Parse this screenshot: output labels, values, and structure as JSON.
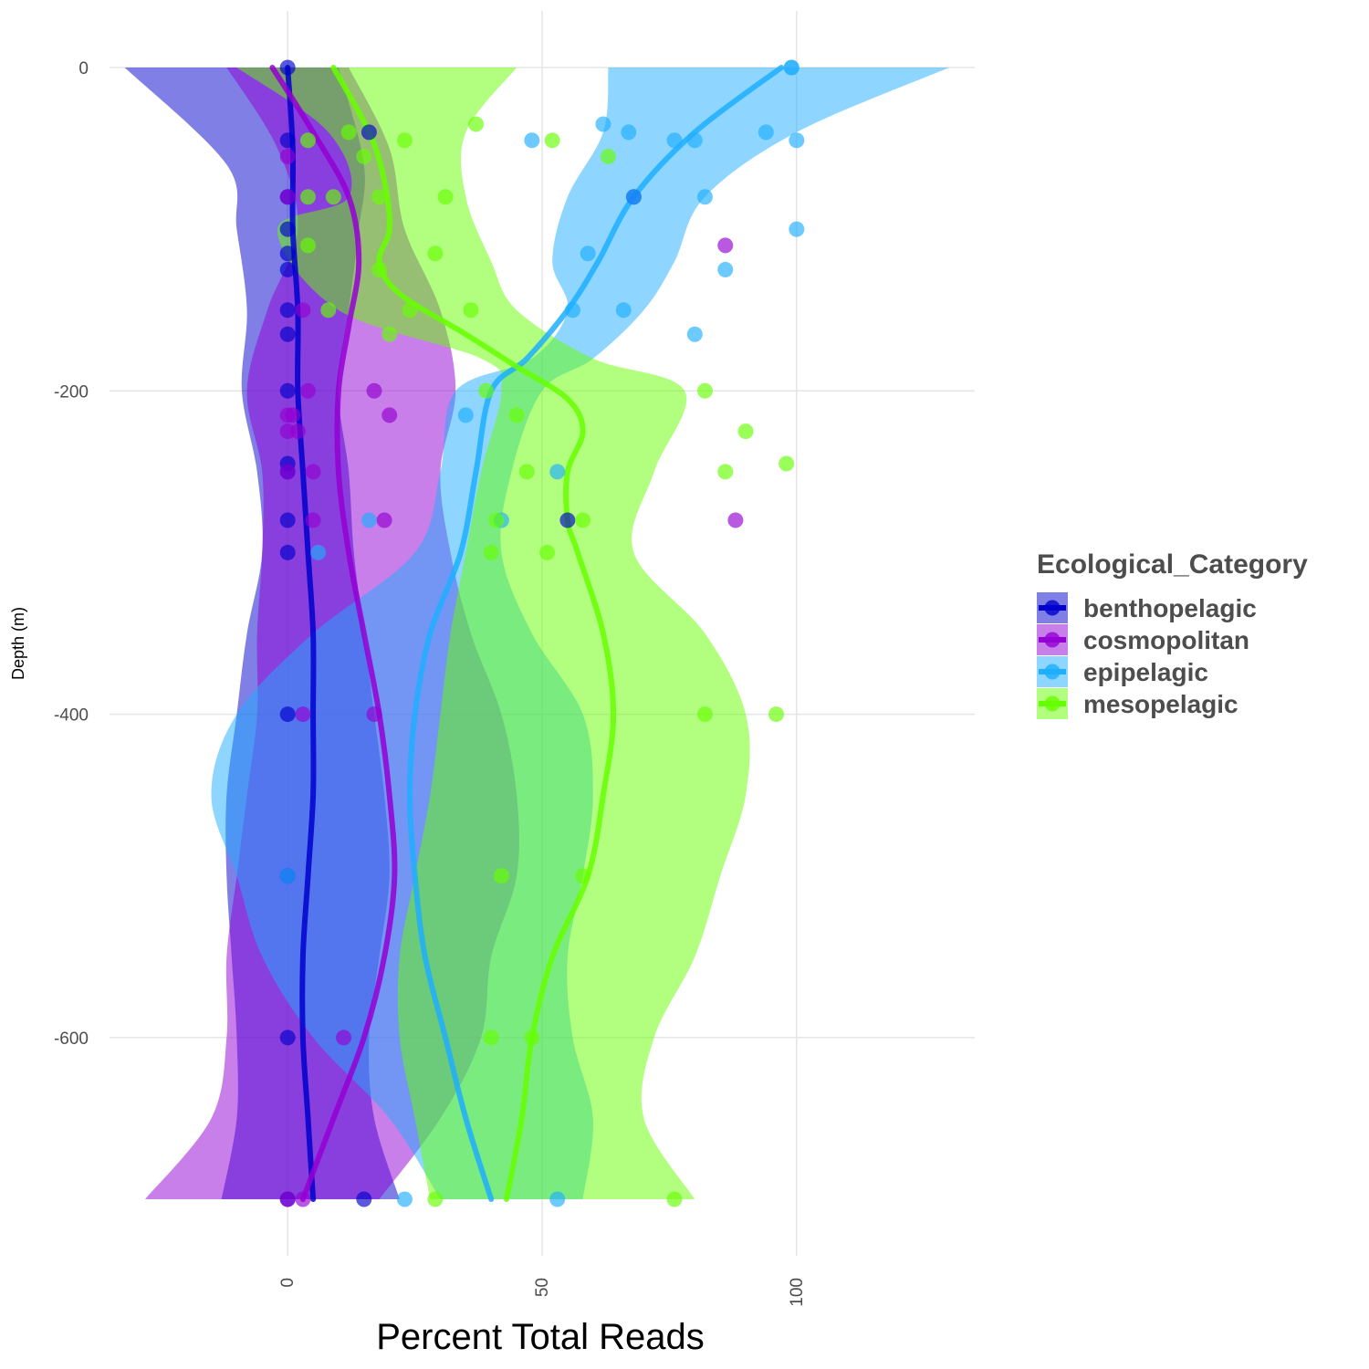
{
  "chart_data": {
    "type": "scatter",
    "title": "",
    "xlabel": "Percent Total Reads",
    "ylabel": "Depth (m)",
    "xlim": [
      -35,
      135
    ],
    "ylim": [
      -735,
      35
    ],
    "x_ticks": [
      0,
      50,
      100
    ],
    "x_tick_labels": [
      "0",
      "50",
      "100"
    ],
    "y_ticks": [
      0,
      -200,
      -400,
      -600
    ],
    "y_tick_labels": [
      "0",
      "-200",
      "-400",
      "-600"
    ],
    "grid": true,
    "legend": {
      "title": "Ecological_Category",
      "position": "right",
      "entries": [
        "benthopelagic",
        "cosmopolitan",
        "epipelagic",
        "mesopelagic"
      ]
    },
    "series": [
      {
        "name": "benthopelagic",
        "color": "#0000CD",
        "points": [
          [
            0,
            0
          ],
          [
            0,
            -45
          ],
          [
            0,
            -80
          ],
          [
            0,
            -100
          ],
          [
            0,
            -115
          ],
          [
            0,
            -125
          ],
          [
            0,
            -150
          ],
          [
            0,
            -165
          ],
          [
            0,
            -200
          ],
          [
            0,
            -245
          ],
          [
            0,
            -250
          ],
          [
            0,
            -280
          ],
          [
            0,
            -300
          ],
          [
            0,
            -400
          ],
          [
            0,
            -500
          ],
          [
            0,
            -600
          ],
          [
            0,
            -700
          ],
          [
            15,
            -700
          ],
          [
            68,
            -80
          ],
          [
            55,
            -280
          ],
          [
            16,
            -40
          ]
        ],
        "smooth": [
          [
            0,
            0
          ],
          [
            1,
            -50
          ],
          [
            1,
            -100
          ],
          [
            2,
            -150
          ],
          [
            2,
            -200
          ],
          [
            3,
            -250
          ],
          [
            4,
            -300
          ],
          [
            5,
            -350
          ],
          [
            5,
            -400
          ],
          [
            5,
            -450
          ],
          [
            4,
            -500
          ],
          [
            3,
            -550
          ],
          [
            3,
            -600
          ],
          [
            4,
            -650
          ],
          [
            5,
            -700
          ]
        ],
        "band_low": [
          [
            -32,
            0
          ],
          [
            -12,
            -60
          ],
          [
            -10,
            -100
          ],
          [
            -8,
            -150
          ],
          [
            -9,
            -200
          ],
          [
            -6,
            -250
          ],
          [
            -5,
            -300
          ],
          [
            -8,
            -350
          ],
          [
            -10,
            -400
          ],
          [
            -12,
            -450
          ],
          [
            -12,
            -500
          ],
          [
            -11,
            -550
          ],
          [
            -10,
            -600
          ],
          [
            -10,
            -650
          ],
          [
            -13,
            -700
          ]
        ],
        "band_high": [
          [
            10,
            0
          ],
          [
            15,
            -60
          ],
          [
            14,
            -100
          ],
          [
            12,
            -150
          ],
          [
            10,
            -200
          ],
          [
            12,
            -250
          ],
          [
            13,
            -300
          ],
          [
            15,
            -350
          ],
          [
            17,
            -400
          ],
          [
            19,
            -450
          ],
          [
            20,
            -500
          ],
          [
            18,
            -550
          ],
          [
            16,
            -600
          ],
          [
            17,
            -650
          ],
          [
            22,
            -700
          ]
        ]
      },
      {
        "name": "cosmopolitan",
        "color": "#9400D3",
        "points": [
          [
            0,
            -55
          ],
          [
            0,
            -80
          ],
          [
            0,
            -215
          ],
          [
            0,
            -225
          ],
          [
            0,
            -250
          ],
          [
            1,
            -215
          ],
          [
            2,
            -225
          ],
          [
            3,
            -150
          ],
          [
            4,
            -200
          ],
          [
            5,
            -250
          ],
          [
            5,
            -280
          ],
          [
            3,
            -400
          ],
          [
            3,
            -700
          ],
          [
            17,
            -200
          ],
          [
            20,
            -215
          ],
          [
            19,
            -280
          ],
          [
            17,
            -400
          ],
          [
            11,
            -600
          ],
          [
            86,
            -110
          ],
          [
            88,
            -280
          ],
          [
            0,
            -700
          ]
        ],
        "smooth": [
          [
            -3,
            0
          ],
          [
            5,
            -40
          ],
          [
            12,
            -80
          ],
          [
            14,
            -120
          ],
          [
            12,
            -160
          ],
          [
            10,
            -200
          ],
          [
            10,
            -250
          ],
          [
            12,
            -300
          ],
          [
            15,
            -350
          ],
          [
            18,
            -400
          ],
          [
            20,
            -450
          ],
          [
            21,
            -500
          ],
          [
            19,
            -550
          ],
          [
            15,
            -600
          ],
          [
            9,
            -650
          ],
          [
            3,
            -700
          ]
        ],
        "band_low": [
          [
            -12,
            0
          ],
          [
            -2,
            -50
          ],
          [
            2,
            -100
          ],
          [
            -4,
            -150
          ],
          [
            -8,
            -200
          ],
          [
            -5,
            -250
          ],
          [
            -5,
            -300
          ],
          [
            -6,
            -350
          ],
          [
            -6,
            -400
          ],
          [
            -8,
            -450
          ],
          [
            -10,
            -500
          ],
          [
            -12,
            -550
          ],
          [
            -12,
            -600
          ],
          [
            -15,
            -650
          ],
          [
            -28,
            -700
          ]
        ],
        "band_high": [
          [
            12,
            0
          ],
          [
            20,
            -50
          ],
          [
            23,
            -100
          ],
          [
            30,
            -150
          ],
          [
            33,
            -200
          ],
          [
            30,
            -250
          ],
          [
            32,
            -300
          ],
          [
            36,
            -350
          ],
          [
            42,
            -400
          ],
          [
            45,
            -450
          ],
          [
            45,
            -500
          ],
          [
            40,
            -550
          ],
          [
            38,
            -600
          ],
          [
            30,
            -650
          ],
          [
            18,
            -700
          ]
        ]
      },
      {
        "name": "epipelagic",
        "color": "#1EAEFF",
        "points": [
          [
            99,
            0
          ],
          [
            99,
            0
          ],
          [
            62,
            -35
          ],
          [
            67,
            -40
          ],
          [
            48,
            -45
          ],
          [
            76,
            -45
          ],
          [
            80,
            -45
          ],
          [
            94,
            -40
          ],
          [
            100,
            -45
          ],
          [
            68,
            -80
          ],
          [
            82,
            -80
          ],
          [
            100,
            -100
          ],
          [
            59,
            -115
          ],
          [
            86,
            -125
          ],
          [
            56,
            -150
          ],
          [
            66,
            -150
          ],
          [
            80,
            -165
          ],
          [
            35,
            -215
          ],
          [
            53,
            -250
          ],
          [
            42,
            -280
          ],
          [
            6,
            -300
          ],
          [
            0,
            -500
          ],
          [
            23,
            -700
          ],
          [
            53,
            -700
          ],
          [
            16,
            -280
          ]
        ],
        "smooth": [
          [
            97,
            0
          ],
          [
            80,
            -40
          ],
          [
            68,
            -80
          ],
          [
            61,
            -120
          ],
          [
            55,
            -150
          ],
          [
            47,
            -180
          ],
          [
            40,
            -200
          ],
          [
            37,
            -250
          ],
          [
            34,
            -300
          ],
          [
            28,
            -350
          ],
          [
            25,
            -400
          ],
          [
            24,
            -450
          ],
          [
            25,
            -500
          ],
          [
            27,
            -550
          ],
          [
            31,
            -600
          ],
          [
            35,
            -650
          ],
          [
            40,
            -700
          ]
        ],
        "band_low": [
          [
            63,
            0
          ],
          [
            62,
            -40
          ],
          [
            55,
            -80
          ],
          [
            52,
            -120
          ],
          [
            55,
            -150
          ],
          [
            48,
            -180
          ],
          [
            33,
            -200
          ],
          [
            30,
            -250
          ],
          [
            25,
            -300
          ],
          [
            5,
            -350
          ],
          [
            -10,
            -400
          ],
          [
            -15,
            -450
          ],
          [
            -10,
            -500
          ],
          [
            -5,
            -550
          ],
          [
            5,
            -600
          ],
          [
            20,
            -650
          ],
          [
            30,
            -700
          ]
        ],
        "band_high": [
          [
            130,
            0
          ],
          [
            100,
            -40
          ],
          [
            82,
            -80
          ],
          [
            76,
            -120
          ],
          [
            70,
            -150
          ],
          [
            60,
            -180
          ],
          [
            50,
            -200
          ],
          [
            44,
            -250
          ],
          [
            42,
            -300
          ],
          [
            48,
            -350
          ],
          [
            58,
            -400
          ],
          [
            60,
            -450
          ],
          [
            58,
            -500
          ],
          [
            55,
            -550
          ],
          [
            56,
            -600
          ],
          [
            60,
            -650
          ],
          [
            58,
            -700
          ]
        ]
      },
      {
        "name": "mesopelagic",
        "color": "#66FF00",
        "points": [
          [
            4,
            -45
          ],
          [
            12,
            -40
          ],
          [
            23,
            -45
          ],
          [
            37,
            -35
          ],
          [
            52,
            -45
          ],
          [
            15,
            -55
          ],
          [
            63,
            -55
          ],
          [
            4,
            -80
          ],
          [
            9,
            -80
          ],
          [
            18,
            -80
          ],
          [
            31,
            -80
          ],
          [
            4,
            -110
          ],
          [
            29,
            -115
          ],
          [
            18,
            -125
          ],
          [
            8,
            -150
          ],
          [
            24,
            -150
          ],
          [
            36,
            -150
          ],
          [
            20,
            -165
          ],
          [
            39,
            -200
          ],
          [
            82,
            -200
          ],
          [
            45,
            -215
          ],
          [
            90,
            -225
          ],
          [
            47,
            -250
          ],
          [
            86,
            -250
          ],
          [
            98,
            -245
          ],
          [
            41,
            -280
          ],
          [
            58,
            -280
          ],
          [
            40,
            -300
          ],
          [
            51,
            -300
          ],
          [
            82,
            -400
          ],
          [
            96,
            -400
          ],
          [
            42,
            -500
          ],
          [
            58,
            -500
          ],
          [
            40,
            -600
          ],
          [
            48,
            -600
          ],
          [
            29,
            -700
          ],
          [
            76,
            -700
          ]
        ],
        "smooth": [
          [
            9,
            0
          ],
          [
            16,
            -40
          ],
          [
            19,
            -70
          ],
          [
            20,
            -100
          ],
          [
            18,
            -120
          ],
          [
            22,
            -140
          ],
          [
            35,
            -165
          ],
          [
            45,
            -185
          ],
          [
            55,
            -205
          ],
          [
            58,
            -225
          ],
          [
            55,
            -250
          ],
          [
            55,
            -280
          ],
          [
            57,
            -300
          ],
          [
            62,
            -350
          ],
          [
            64,
            -400
          ],
          [
            62,
            -450
          ],
          [
            59,
            -500
          ],
          [
            52,
            -550
          ],
          [
            48,
            -600
          ],
          [
            46,
            -650
          ],
          [
            43,
            -700
          ]
        ],
        "band_low": [
          [
            -10,
            0
          ],
          [
            8,
            -40
          ],
          [
            12,
            -80
          ],
          [
            -2,
            -100
          ],
          [
            10,
            -150
          ],
          [
            38,
            -180
          ],
          [
            42,
            -200
          ],
          [
            38,
            -250
          ],
          [
            35,
            -300
          ],
          [
            32,
            -350
          ],
          [
            30,
            -400
          ],
          [
            28,
            -450
          ],
          [
            25,
            -500
          ],
          [
            22,
            -550
          ],
          [
            22,
            -600
          ],
          [
            25,
            -650
          ],
          [
            28,
            -700
          ]
        ],
        "band_high": [
          [
            45,
            0
          ],
          [
            35,
            -40
          ],
          [
            35,
            -80
          ],
          [
            40,
            -120
          ],
          [
            45,
            -150
          ],
          [
            60,
            -180
          ],
          [
            78,
            -200
          ],
          [
            72,
            -250
          ],
          [
            68,
            -300
          ],
          [
            82,
            -350
          ],
          [
            90,
            -400
          ],
          [
            90,
            -450
          ],
          [
            85,
            -500
          ],
          [
            80,
            -550
          ],
          [
            72,
            -600
          ],
          [
            70,
            -650
          ],
          [
            80,
            -700
          ]
        ]
      }
    ]
  }
}
